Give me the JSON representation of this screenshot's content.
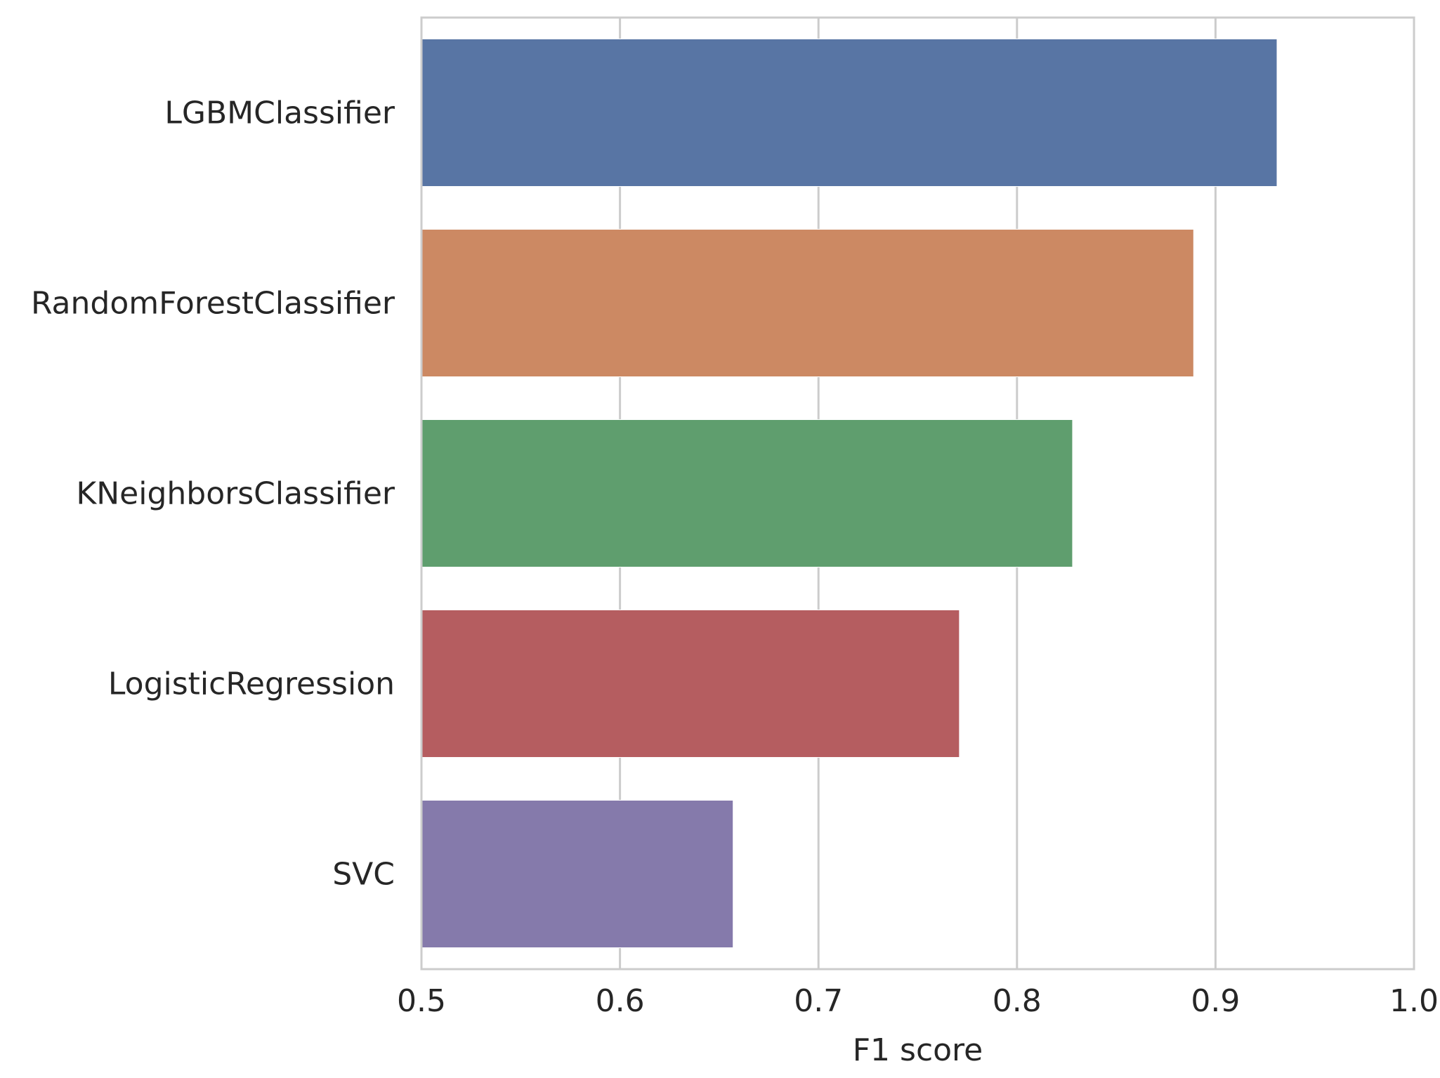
{
  "chart_data": {
    "type": "bar",
    "orientation": "horizontal",
    "categories": [
      "LGBMClassifier",
      "RandomForestClassifier",
      "KNeighborsClassifier",
      "LogisticRegression",
      "SVC"
    ],
    "values": [
      0.931,
      0.889,
      0.828,
      0.771,
      0.657
    ],
    "colors": [
      "#5875a4",
      "#cc8963",
      "#5f9e6e",
      "#b55d60",
      "#857aab"
    ],
    "xlabel": "F1 score",
    "ylabel": "",
    "xlim": [
      0.5,
      1.0
    ],
    "xticks": [
      "0.5",
      "0.6",
      "0.7",
      "0.8",
      "0.9",
      "1.0"
    ],
    "grid": "vertical",
    "grid_color": "#cccccc"
  }
}
